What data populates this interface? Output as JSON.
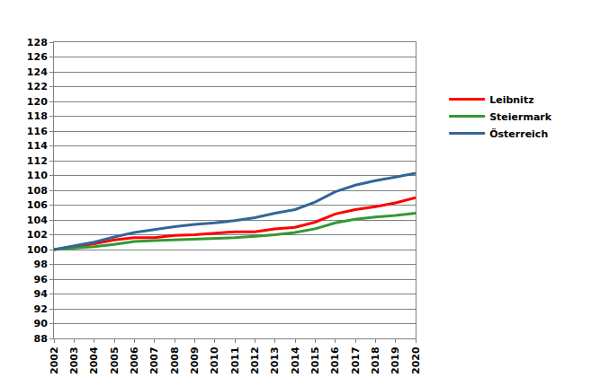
{
  "chart_data": {
    "type": "line",
    "x": [
      2002,
      2003,
      2004,
      2005,
      2006,
      2007,
      2008,
      2009,
      2010,
      2011,
      2012,
      2013,
      2014,
      2015,
      2016,
      2017,
      2018,
      2019,
      2020
    ],
    "series": [
      {
        "name": "Leibnitz",
        "color": "#ff0000",
        "values": [
          100,
          100.4,
          100.8,
          101.3,
          101.6,
          101.6,
          101.9,
          102.0,
          102.2,
          102.4,
          102.4,
          102.8,
          103.0,
          103.7,
          104.8,
          105.4,
          105.8,
          106.3,
          107.0
        ]
      },
      {
        "name": "Steiermark",
        "color": "#339933",
        "values": [
          100,
          100.2,
          100.4,
          100.7,
          101.1,
          101.2,
          101.3,
          101.4,
          101.5,
          101.6,
          101.8,
          102.0,
          102.3,
          102.8,
          103.6,
          104.1,
          104.4,
          104.6,
          104.9
        ]
      },
      {
        "name": "Österreich",
        "color": "#336699",
        "values": [
          100,
          100.5,
          101.0,
          101.7,
          102.3,
          102.7,
          103.1,
          103.4,
          103.6,
          103.9,
          104.3,
          104.9,
          105.4,
          106.4,
          107.8,
          108.7,
          109.3,
          109.8,
          110.3
        ]
      }
    ],
    "xlim": [
      2002,
      2020
    ],
    "xticks": [
      2002,
      2003,
      2004,
      2005,
      2006,
      2007,
      2008,
      2009,
      2010,
      2011,
      2012,
      2013,
      2014,
      2015,
      2016,
      2017,
      2018,
      2019,
      2020
    ],
    "ylim": [
      88,
      128
    ],
    "yticks": [
      88,
      90,
      92,
      94,
      96,
      98,
      100,
      102,
      104,
      106,
      108,
      110,
      112,
      114,
      116,
      118,
      120,
      122,
      124,
      126,
      128
    ],
    "grid": true,
    "legend": "right"
  }
}
